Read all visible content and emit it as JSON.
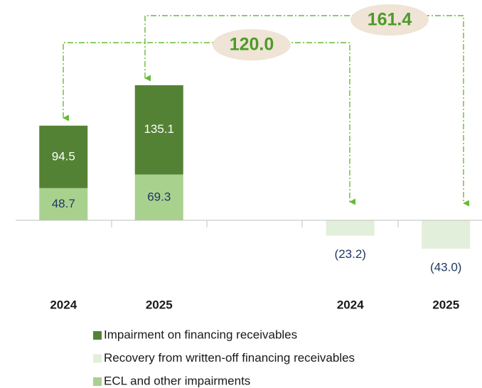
{
  "chart_data": {
    "type": "bar",
    "categories": [
      "2024",
      "2025",
      null,
      "2024",
      "2025"
    ],
    "series": [
      {
        "name": "Impairment on financing receivables",
        "color": "#548235",
        "values": [
          94.5,
          135.1,
          null,
          null,
          null
        ]
      },
      {
        "name": "Recovery from written-off financing receivables",
        "color": "#e2efda",
        "values": [
          null,
          null,
          null,
          -23.2,
          -43.0
        ],
        "value_labels": [
          null,
          null,
          null,
          "(23.2)",
          "(43.0)"
        ]
      },
      {
        "name": "ECL and other impairments",
        "color": "#a9d18e",
        "values": [
          48.7,
          69.3,
          null,
          null,
          null
        ]
      }
    ],
    "annotations": [
      "120.0",
      "161.4"
    ]
  }
}
